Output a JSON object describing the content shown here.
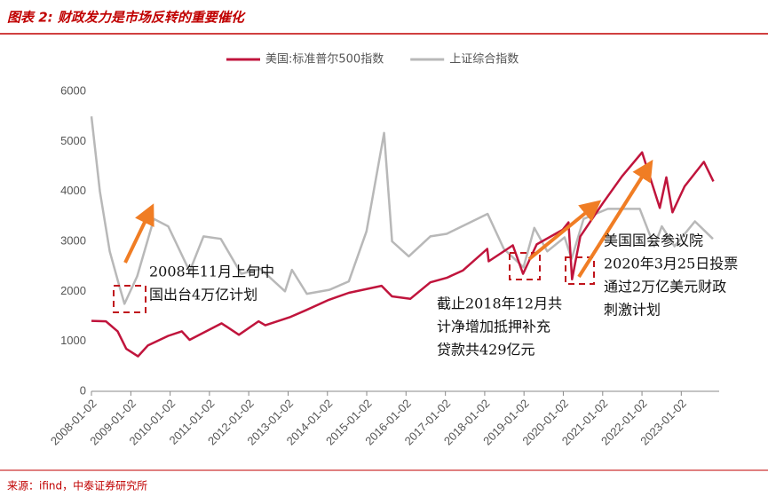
{
  "chart_data": {
    "type": "line",
    "title": "图表 2: 财政发力是市场反转的重要催化",
    "source": "来源：ifind，中泰证券研究所",
    "xlim": [
      "2008-01-02",
      "2023-12-20"
    ],
    "xticks": [
      "2008-01-02",
      "2009-01-02",
      "2010-01-02",
      "2011-01-02",
      "2012-01-02",
      "2013-01-02",
      "2014-01-02",
      "2015-01-02",
      "2016-01-02",
      "2017-01-02",
      "2018-01-02",
      "2019-01-02",
      "2020-01-02",
      "2021-01-02",
      "2022-01-02",
      "2023-01-02"
    ],
    "ylim": [
      0,
      6000
    ],
    "yticks": [
      0,
      1000,
      2000,
      3000,
      4000,
      5000,
      6000
    ],
    "grid": false,
    "legend": "top",
    "series": [
      {
        "name": "美国:标准普尔500指数",
        "color": "#c0143c",
        "x": [
          "2008-01-02",
          "2008-05-15",
          "2008-09-01",
          "2008-11-20",
          "2009-03-09",
          "2009-06-10",
          "2009-12-15",
          "2010-04-20",
          "2010-07-02",
          "2011-04-25",
          "2011-10-03",
          "2012-04-02",
          "2012-06-04",
          "2013-01-15",
          "2013-06-15",
          "2014-01-15",
          "2014-07-20",
          "2015-05-20",
          "2015-08-25",
          "2016-02-11",
          "2016-08-15",
          "2017-01-15",
          "2017-06-15",
          "2018-01-26",
          "2018-02-08",
          "2018-09-20",
          "2018-12-24",
          "2019-04-30",
          "2019-12-27",
          "2020-02-19",
          "2020-03-23",
          "2020-06-08",
          "2020-12-30",
          "2021-06-30",
          "2022-01-03",
          "2022-06-16",
          "2022-08-16",
          "2022-10-12",
          "2023-02-02",
          "2023-07-31",
          "2023-10-27"
        ],
        "values": [
          1410,
          1400,
          1200,
          850,
          700,
          920,
          1110,
          1200,
          1030,
          1360,
          1130,
          1400,
          1320,
          1480,
          1620,
          1830,
          1970,
          2110,
          1900,
          1850,
          2180,
          2270,
          2420,
          2850,
          2600,
          2920,
          2350,
          2940,
          3230,
          3380,
          2240,
          3100,
          3750,
          4300,
          4780,
          3670,
          4280,
          3580,
          4100,
          4590,
          4200
        ]
      },
      {
        "name": "上证综合指数",
        "color": "#b8b8b8",
        "x": [
          "2008-01-02",
          "2008-03-20",
          "2008-06-20",
          "2008-09-18",
          "2008-11-04",
          "2009-03-02",
          "2009-08-04",
          "2009-12-15",
          "2010-07-02",
          "2010-11-08",
          "2011-04-18",
          "2011-10-24",
          "2012-04-20",
          "2012-12-04",
          "2013-02-06",
          "2013-06-25",
          "2014-01-20",
          "2014-07-20",
          "2014-12-31",
          "2015-06-12",
          "2015-08-26",
          "2016-01-28",
          "2016-08-15",
          "2017-01-15",
          "2018-01-29",
          "2018-06-29",
          "2018-12-28",
          "2019-04-08",
          "2019-08-06",
          "2020-01-14",
          "2020-03-19",
          "2020-07-09",
          "2021-02-18",
          "2021-12-13",
          "2022-04-26",
          "2022-07-05",
          "2022-10-31",
          "2023-05-09",
          "2023-10-23"
        ],
        "values": [
          5500,
          4000,
          2800,
          2100,
          1750,
          2300,
          3450,
          3300,
          2400,
          3100,
          3050,
          2350,
          2450,
          2000,
          2430,
          1950,
          2030,
          2200,
          3200,
          5170,
          3000,
          2700,
          3100,
          3150,
          3550,
          2850,
          2480,
          3270,
          2800,
          3080,
          2650,
          3450,
          3650,
          3650,
          2900,
          3300,
          2900,
          3400,
          3050
        ]
      }
    ],
    "annotations": [
      {
        "lines": [
          "2008年11月上旬中",
          "国出台4万亿计划"
        ]
      },
      {
        "lines": [
          "截止2018年12月共",
          "计净增加抵押补充",
          "贷款共429亿元"
        ]
      },
      {
        "lines": [
          "美国国会参议院",
          "2020年3月25日投票",
          "通过2万亿美元财政",
          "刺激计划"
        ]
      }
    ]
  }
}
